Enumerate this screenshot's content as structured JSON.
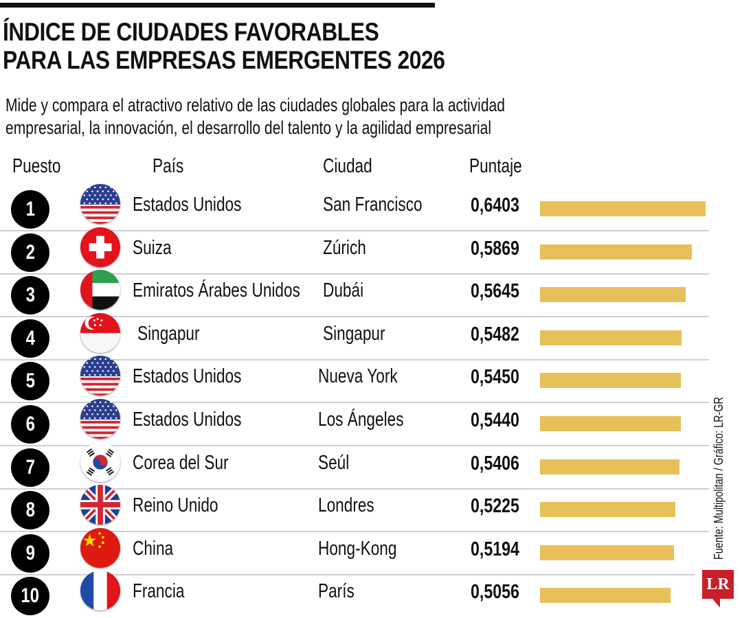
{
  "title_lines": [
    "ÍNDICE DE CIUDADES FAVORABLES",
    "PARA LAS EMPRESAS EMERGENTES 2026"
  ],
  "subtitle_lines": [
    "Mide y compara el atractivo relativo de las ciudades globales para la actividad",
    "empresarial, la innovación, el desarrollo del talento y la agilidad empresarial"
  ],
  "headers": {
    "rank": "Puesto",
    "country": "País",
    "city": "Ciudad",
    "score": "Puntaje"
  },
  "source": "Fuente: Multipolitan / Gráfico: LR-GR",
  "logo": "LR",
  "colors": {
    "bar": "#e8c05a",
    "rank_circle": "#000000",
    "separator": "#cfcfcf",
    "logo": "#c8202a"
  },
  "chart_data": {
    "type": "bar",
    "orientation": "horizontal",
    "title": "ÍNDICE DE CIUDADES FAVORABLES PARA LAS EMPRESAS EMERGENTES 2026",
    "xlabel": "Puntaje",
    "ylabel": "Puesto",
    "xlim": [
      0,
      0.6403
    ],
    "grid": false,
    "categories": [
      "San Francisco",
      "Zúrich",
      "Dubái",
      "Singapur",
      "Nueva York",
      "Los Ángeles",
      "Seúl",
      "Londres",
      "Hong-Kong",
      "París"
    ],
    "values": [
      0.6403,
      0.5869,
      0.5645,
      0.5482,
      0.545,
      0.544,
      0.5406,
      0.5225,
      0.5194,
      0.5056
    ],
    "rows": [
      {
        "rank": "1",
        "flag": "usa-flag-icon",
        "country": "Estados Unidos",
        "city": "San Francisco",
        "score_label": "0,6403",
        "value": 0.6403
      },
      {
        "rank": "2",
        "flag": "switzerland-flag-icon",
        "country": "Suiza",
        "city": "Zúrich",
        "score_label": "0,5869",
        "value": 0.5869
      },
      {
        "rank": "3",
        "flag": "uae-flag-icon",
        "country": "Emiratos Árabes Unidos",
        "city": "Dubái",
        "score_label": "0,5645",
        "value": 0.5645
      },
      {
        "rank": "4",
        "flag": "singapore-flag-icon",
        "country": "Singapur",
        "city": "Singapur",
        "score_label": "0,5482",
        "value": 0.5482
      },
      {
        "rank": "5",
        "flag": "usa-flag-icon",
        "country": "Estados Unidos",
        "city": "Nueva York",
        "score_label": "0,5450",
        "value": 0.545
      },
      {
        "rank": "6",
        "flag": "usa-flag-icon",
        "country": "Estados Unidos",
        "city": "Los Ángeles",
        "score_label": "0,5440",
        "value": 0.544
      },
      {
        "rank": "7",
        "flag": "south-korea-flag-icon",
        "country": "Corea del Sur",
        "city": "Seúl",
        "score_label": "0,5406",
        "value": 0.5406
      },
      {
        "rank": "8",
        "flag": "uk-flag-icon",
        "country": "Reino Unido",
        "city": "Londres",
        "score_label": "0,5225",
        "value": 0.5225
      },
      {
        "rank": "9",
        "flag": "china-flag-icon",
        "country": "China",
        "city": "Hong-Kong",
        "score_label": "0,5194",
        "value": 0.5194
      },
      {
        "rank": "10",
        "flag": "france-flag-icon",
        "country": "Francia",
        "city": "París",
        "score_label": "0,5056",
        "value": 0.5056
      }
    ]
  }
}
